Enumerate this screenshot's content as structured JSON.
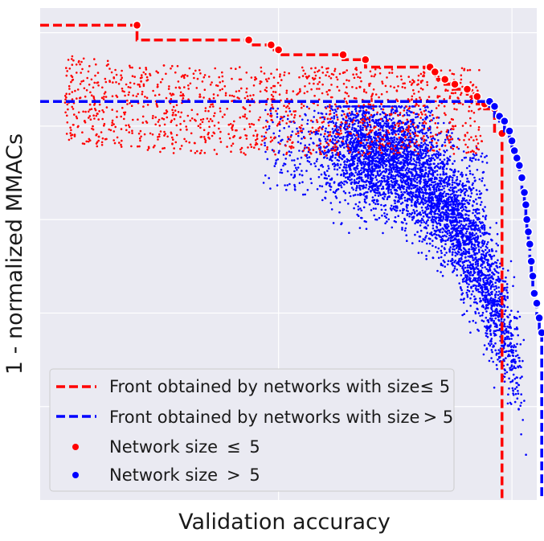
{
  "chart_data": {
    "type": "scatter",
    "xlabel": "Validation accuracy",
    "ylabel": "1 - normalized MMACs",
    "xlim": [
      0.0,
      1.0
    ],
    "ylim": [
      0.0,
      1.0
    ],
    "grid": true,
    "tick_labels_shown": false,
    "legend_placement": "bottom-left",
    "colors": {
      "small": "#ff0000",
      "large": "#0000ff",
      "background": "#eaeaf2",
      "grid": "#ffffff"
    },
    "legend": [
      {
        "kind": "line",
        "color": "#ff0000",
        "label": "Front obtained by networks with size≤ 5"
      },
      {
        "kind": "line",
        "color": "#0000ff",
        "label": "Front obtained by networks with size > 5"
      },
      {
        "kind": "dot",
        "color": "#ff0000",
        "label": "Network size  ≤  5"
      },
      {
        "kind": "dot",
        "color": "#0000ff",
        "label": "Network size  >  5"
      }
    ],
    "series": [
      {
        "role": "front-small",
        "color": "#ff0000",
        "points": [
          [
            0.195,
            0.965
          ],
          [
            0.42,
            0.935
          ],
          [
            0.465,
            0.925
          ],
          [
            0.48,
            0.915
          ],
          [
            0.61,
            0.905
          ],
          [
            0.655,
            0.895
          ],
          [
            0.785,
            0.88
          ],
          [
            0.795,
            0.87
          ],
          [
            0.815,
            0.855
          ],
          [
            0.835,
            0.845
          ],
          [
            0.86,
            0.835
          ],
          [
            0.88,
            0.82
          ],
          [
            0.895,
            0.805
          ],
          [
            0.915,
            0.795
          ],
          [
            0.93,
            0.745
          ]
        ]
      },
      {
        "role": "front-large",
        "color": "#0000ff",
        "points": [
          [
            0.905,
            0.81
          ],
          [
            0.915,
            0.8
          ],
          [
            0.925,
            0.78
          ],
          [
            0.935,
            0.77
          ],
          [
            0.945,
            0.75
          ],
          [
            0.95,
            0.73
          ],
          [
            0.955,
            0.71
          ],
          [
            0.96,
            0.695
          ],
          [
            0.965,
            0.68
          ],
          [
            0.97,
            0.655
          ],
          [
            0.975,
            0.625
          ],
          [
            0.978,
            0.6
          ],
          [
            0.98,
            0.57
          ],
          [
            0.983,
            0.545
          ],
          [
            0.986,
            0.52
          ],
          [
            0.989,
            0.485
          ],
          [
            0.992,
            0.455
          ],
          [
            0.995,
            0.42
          ],
          [
            1.0,
            0.4
          ],
          [
            1.005,
            0.37
          ],
          [
            1.01,
            0.34
          ]
        ]
      }
    ]
  }
}
